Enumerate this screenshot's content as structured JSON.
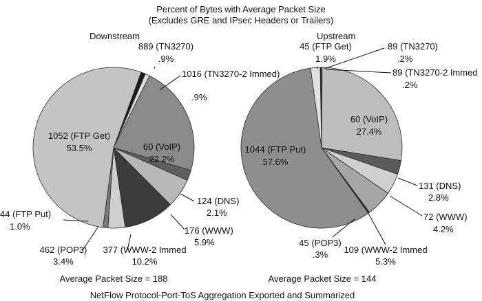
{
  "figure": {
    "title_line1": "Percent of Bytes with Average Packet Size",
    "title_line2": "(Excludes GRE and IPsec Headers or Trailers)",
    "caption": "NetFlow Protocol-Port-ToS Aggregation Exported and Summarized"
  },
  "chart_data": [
    {
      "type": "pie",
      "title": "Downstream",
      "footer": "Average Packet Size = 188",
      "slices": [
        {
          "label": "889 (TN3270)",
          "value": 0.9,
          "pct": ".9%",
          "color": "#1a1a1a"
        },
        {
          "label": "1016 (TN3270-2 Immed)",
          "value": 0.9,
          "pct": ".9%",
          "color": "#dcdcdc"
        },
        {
          "label": "60 (VoIP)",
          "value": 22.2,
          "pct": "22.2%",
          "color": "#8a8a8a"
        },
        {
          "label": "124 (DNS)",
          "value": 2.1,
          "pct": "2.1%",
          "color": "#5e5e5e"
        },
        {
          "label": "176 (WWW)",
          "value": 5.9,
          "pct": "5.9%",
          "color": "#b8b8b8"
        },
        {
          "label": "377 (WWW-2 Immed",
          "value": 10.2,
          "pct": "10.2%",
          "color": "#3c3c3c"
        },
        {
          "label": "462 (POP3)",
          "value": 3.4,
          "pct": "3.4%",
          "color": "#cfcfcf"
        },
        {
          "label": "44 (FTP Put)",
          "value": 1.0,
          "pct": "1.0%",
          "color": "#7a7a7a"
        },
        {
          "label": "1052 (FTP Get)",
          "value": 53.5,
          "pct": "53.5%",
          "color": "#c4c4c4"
        }
      ]
    },
    {
      "type": "pie",
      "title": "Upstream",
      "footer": "Average Packet Size = 144",
      "slices": [
        {
          "label": "89 (TN3270)",
          "value": 0.2,
          "pct": ".2%",
          "color": "#1a1a1a"
        },
        {
          "label": "89 (TN3270-2 Immed",
          "value": 0.2,
          "pct": ".2%",
          "color": "#5e5e5e"
        },
        {
          "label": "60 (VoIP)",
          "value": 27.4,
          "pct": "27.4%",
          "color": "#bdbdbd"
        },
        {
          "label": "131 (DNS)",
          "value": 2.8,
          "pct": "2.8%",
          "color": "#5a5a5a"
        },
        {
          "label": "72 (WWW)",
          "value": 4.2,
          "pct": "4.2%",
          "color": "#cfcfcf"
        },
        {
          "label": "109 (WWW-2 Immed",
          "value": 5.3,
          "pct": "5.3%",
          "color": "#a6a6a6"
        },
        {
          "label": "45 (POP3)",
          "value": 0.3,
          "pct": ".3%",
          "color": "#2a2a2a"
        },
        {
          "label": "1044 (FTP Put)",
          "value": 57.6,
          "pct": "57.6%",
          "color": "#8e8e8e"
        },
        {
          "label": "45 (FTP Get)",
          "value": 1.9,
          "pct": "1.9%",
          "color": "#e0e0e0"
        }
      ]
    }
  ]
}
